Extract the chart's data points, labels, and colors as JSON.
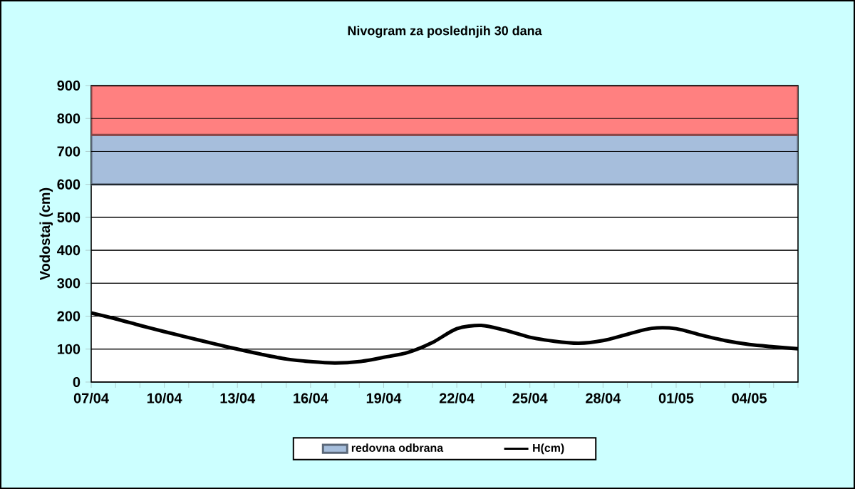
{
  "chart_data": {
    "type": "line",
    "title": "Nivogram za poslednjih 30 dana",
    "ylabel": "Vodostaj (cm)",
    "categories": [
      "07/04",
      null,
      null,
      "10/04",
      null,
      null,
      "13/04",
      null,
      null,
      "16/04",
      null,
      null,
      "19/04",
      null,
      null,
      "22/04",
      null,
      null,
      "25/04",
      null,
      null,
      "28/04",
      null,
      null,
      "01/05",
      null,
      null,
      "04/05",
      null,
      null
    ],
    "series": [
      {
        "name": "H(cm)",
        "color": "#000000",
        "values": [
          210,
          192,
          172,
          153,
          135,
          117,
          100,
          84,
          70,
          62,
          58,
          62,
          75,
          90,
          120,
          162,
          172,
          157,
          136,
          124,
          118,
          126,
          145,
          163,
          162,
          143,
          126,
          114,
          107,
          101
        ]
      }
    ],
    "bands": [
      {
        "axis": "y",
        "from": 600,
        "to": 750,
        "label": "redovna odbrana",
        "color": "#a6bedc"
      },
      {
        "axis": "y",
        "from": 750,
        "to": 900,
        "color": "#ff8080"
      }
    ],
    "ylim": [
      0,
      900
    ],
    "yticks": [
      0,
      100,
      200,
      300,
      400,
      500,
      600,
      700,
      800,
      900
    ],
    "grid": "y",
    "legend": "bottom",
    "marker": "none",
    "line_style": "solid"
  }
}
